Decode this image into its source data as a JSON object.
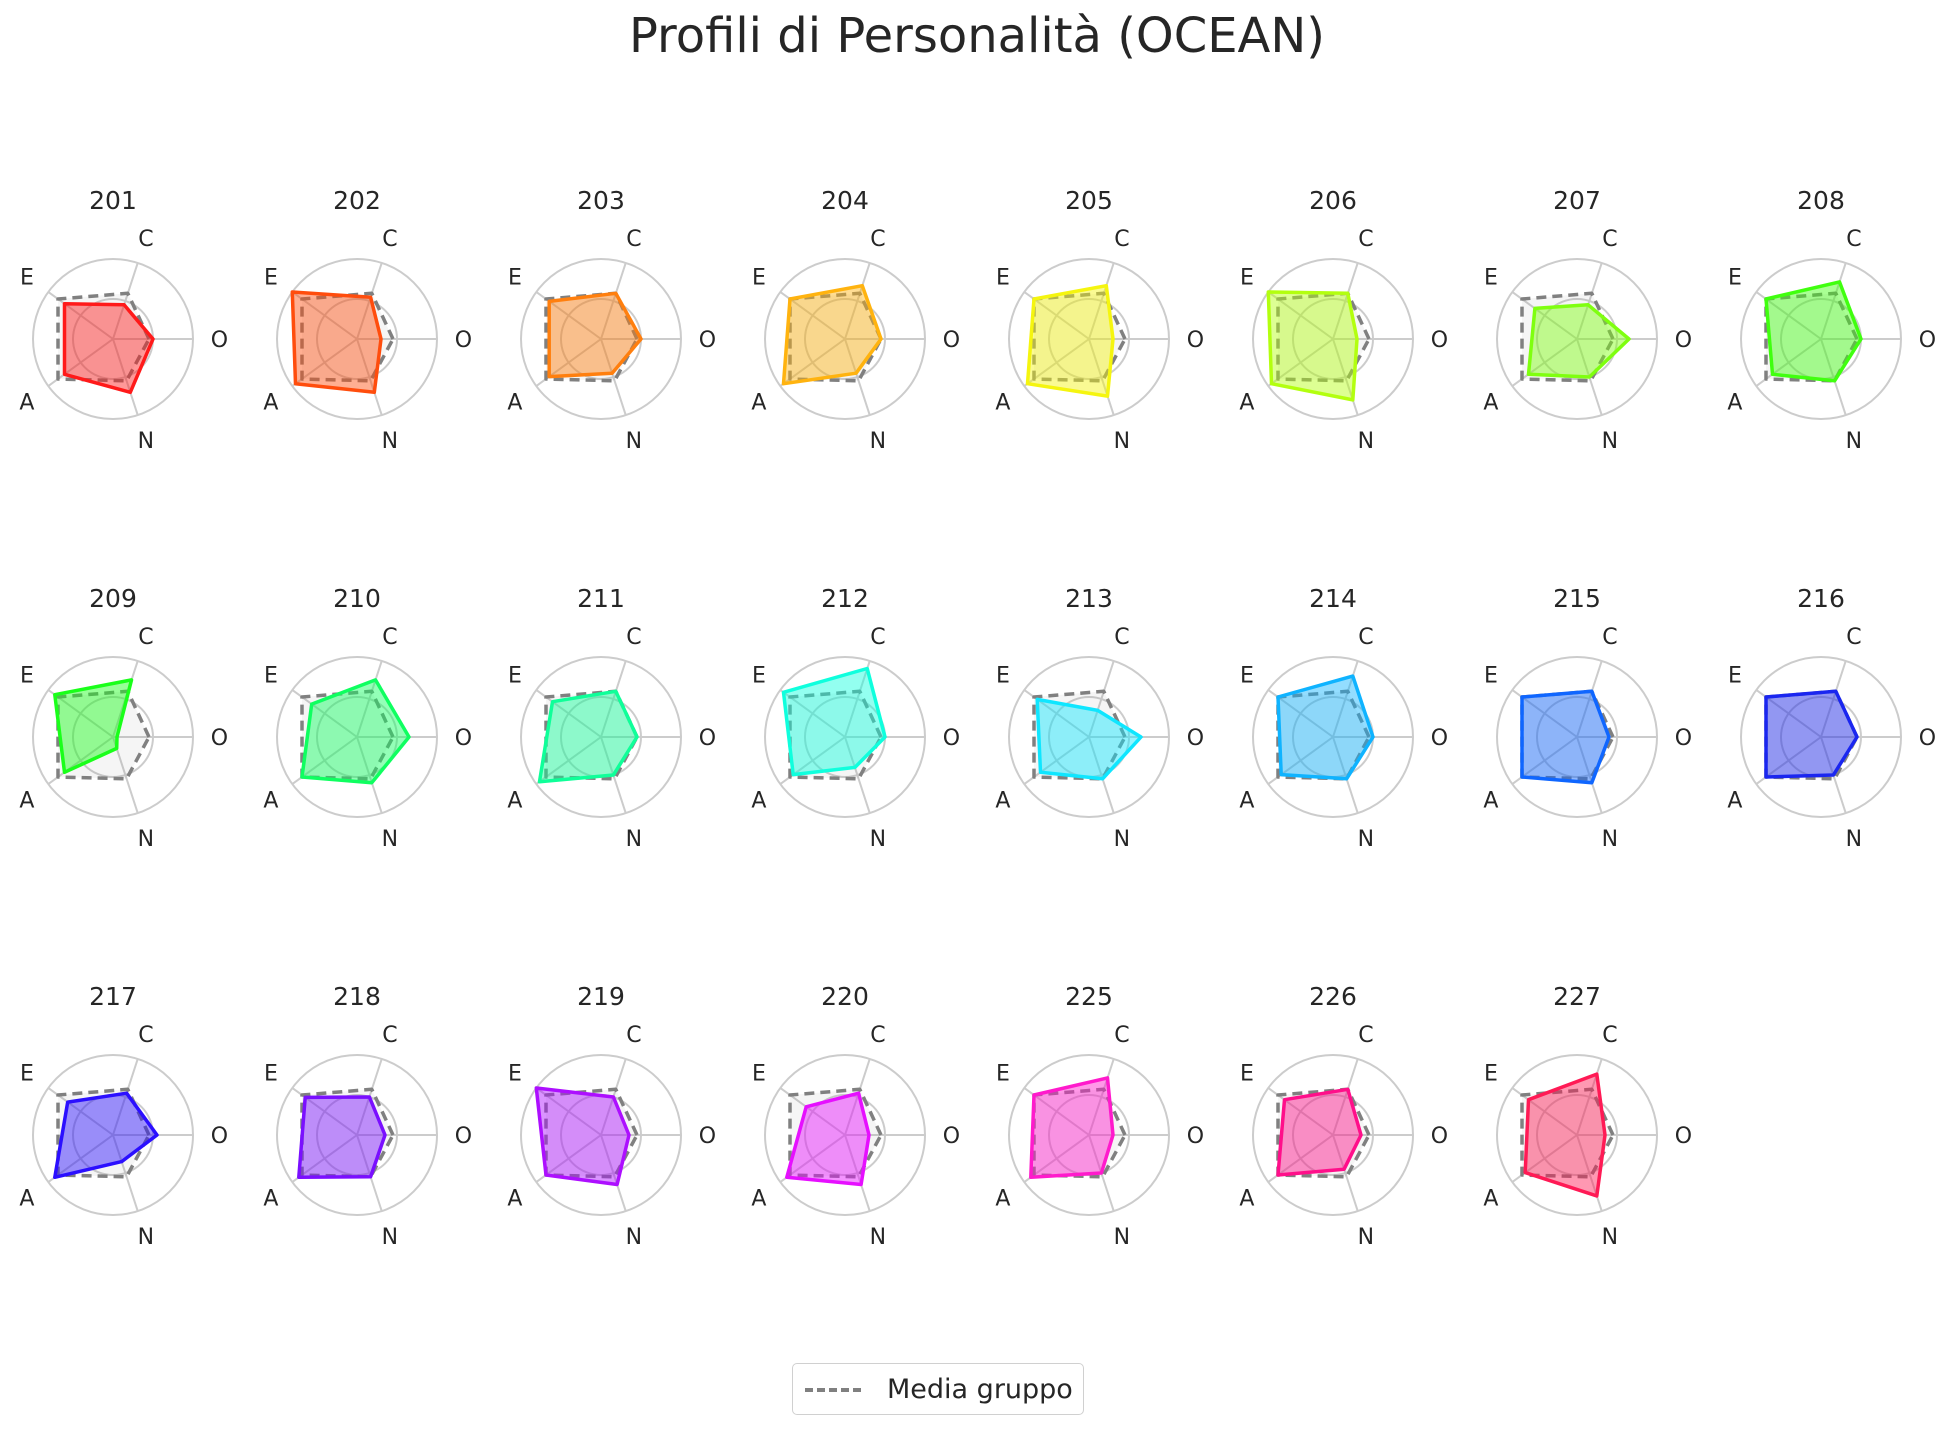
{
  "title": "Profili di Personalità (OCEAN)",
  "chart_data": {
    "type": "radar",
    "title": "Profili di Personalità (OCEAN)",
    "axes": [
      "O",
      "C",
      "E",
      "A",
      "N"
    ],
    "rlim": [
      0,
      1
    ],
    "rgrid": [
      0.5,
      1.0
    ],
    "grid": true,
    "group_mean": [
      0.45,
      0.6,
      0.85,
      0.85,
      0.55
    ],
    "legend": {
      "label": "Media gruppo",
      "style": "dashed",
      "color": "#808080",
      "placement": "bottom-center"
    },
    "subplots": [
      {
        "id": "201",
        "color": "#ff1a1a",
        "values": [
          0.5,
          0.45,
          0.75,
          0.75,
          0.7
        ]
      },
      {
        "id": "202",
        "color": "#ff4d0d",
        "values": [
          0.3,
          0.55,
          1.0,
          0.95,
          0.7
        ]
      },
      {
        "id": "203",
        "color": "#ff7f0e",
        "values": [
          0.5,
          0.6,
          0.8,
          0.8,
          0.45
        ]
      },
      {
        "id": "204",
        "color": "#ffb30f",
        "values": [
          0.45,
          0.7,
          0.85,
          0.95,
          0.45
        ]
      },
      {
        "id": "205",
        "color": "#f5f50f",
        "values": [
          0.3,
          0.7,
          0.85,
          0.95,
          0.75
        ]
      },
      {
        "id": "206",
        "color": "#b3ff0f",
        "values": [
          0.3,
          0.6,
          1.0,
          0.95,
          0.8
        ]
      },
      {
        "id": "207",
        "color": "#7fff0f",
        "values": [
          0.65,
          0.45,
          0.65,
          0.75,
          0.5
        ]
      },
      {
        "id": "208",
        "color": "#40ff0f",
        "values": [
          0.5,
          0.75,
          0.85,
          0.75,
          0.55
        ]
      },
      {
        "id": "209",
        "color": "#1aff1a",
        "values": [
          0.05,
          0.75,
          0.9,
          0.75,
          0.15
        ]
      },
      {
        "id": "210",
        "color": "#0fff60",
        "values": [
          0.65,
          0.75,
          0.7,
          0.85,
          0.6
        ]
      },
      {
        "id": "211",
        "color": "#0fff99",
        "values": [
          0.45,
          0.6,
          0.75,
          0.95,
          0.5
        ]
      },
      {
        "id": "212",
        "color": "#0fffdd",
        "values": [
          0.5,
          0.9,
          0.95,
          0.8,
          0.4
        ]
      },
      {
        "id": "213",
        "color": "#0fe6ff",
        "values": [
          0.65,
          0.35,
          0.8,
          0.75,
          0.55
        ]
      },
      {
        "id": "214",
        "color": "#0fb3ff",
        "values": [
          0.5,
          0.8,
          0.85,
          0.8,
          0.55
        ]
      },
      {
        "id": "215",
        "color": "#0f66ff",
        "values": [
          0.4,
          0.6,
          0.85,
          0.85,
          0.6
        ]
      },
      {
        "id": "216",
        "color": "#1a26f0",
        "values": [
          0.45,
          0.6,
          0.85,
          0.85,
          0.5
        ]
      },
      {
        "id": "217",
        "color": "#2b0fff",
        "values": [
          0.55,
          0.55,
          0.7,
          0.9,
          0.35
        ]
      },
      {
        "id": "218",
        "color": "#7a0fff",
        "values": [
          0.35,
          0.5,
          0.8,
          0.9,
          0.55
        ]
      },
      {
        "id": "219",
        "color": "#ad0fff",
        "values": [
          0.35,
          0.5,
          1.0,
          0.85,
          0.65
        ]
      },
      {
        "id": "220",
        "color": "#e60fff",
        "values": [
          0.3,
          0.55,
          0.6,
          0.9,
          0.65
        ]
      },
      {
        "id": "225",
        "color": "#ff1acc",
        "values": [
          0.3,
          0.75,
          0.85,
          0.9,
          0.5
        ]
      },
      {
        "id": "226",
        "color": "#ff0f8a",
        "values": [
          0.35,
          0.6,
          0.75,
          0.85,
          0.45
        ]
      },
      {
        "id": "227",
        "color": "#ff1a55",
        "values": [
          0.35,
          0.8,
          0.75,
          0.8,
          0.8
        ]
      }
    ]
  }
}
